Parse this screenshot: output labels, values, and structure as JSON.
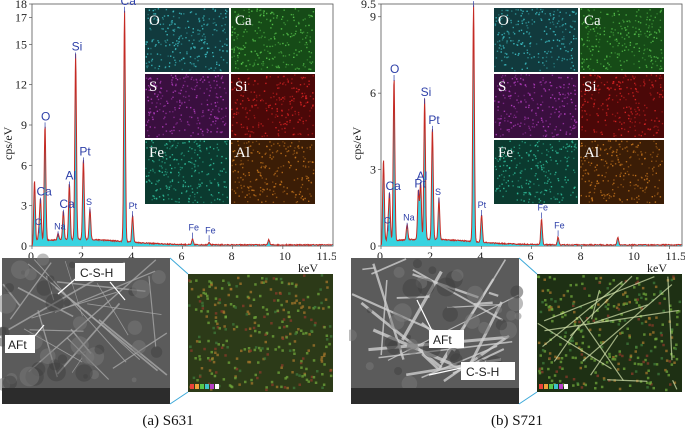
{
  "panels": [
    {
      "id": "a",
      "caption": "(a) S631",
      "chart_data": {
        "type": "area",
        "title": "",
        "xlabel": "keV",
        "ylabel": "cps/eV",
        "xlim": [
          0,
          12
        ],
        "ylim": [
          0,
          18
        ],
        "x_ticks": [
          "0",
          "2",
          "4",
          "6",
          "8",
          "10",
          "11.5"
        ],
        "y_ticks": [
          "0",
          "3",
          "6",
          "9",
          "12",
          "15",
          "17",
          "18"
        ],
        "peaks": [
          {
            "element": "Ca",
            "x": 0.34,
            "y": 3.0
          },
          {
            "element": "C",
            "x": 0.28,
            "y": 0.8
          },
          {
            "element": "O",
            "x": 0.52,
            "y": 8.6
          },
          {
            "element": "Na",
            "x": 1.04,
            "y": 0.5
          },
          {
            "element": "Ca",
            "x": 1.25,
            "y": 2.1
          },
          {
            "element": "Al",
            "x": 1.49,
            "y": 4.2
          },
          {
            "element": "Si",
            "x": 1.74,
            "y": 13.8
          },
          {
            "element": "Pt",
            "x": 2.05,
            "y": 6.0
          },
          {
            "element": "S",
            "x": 2.31,
            "y": 2.3
          },
          {
            "element": "Ca",
            "x": 3.69,
            "y": 17.2
          },
          {
            "element": "Pt",
            "x": 4.01,
            "y": 2.0
          },
          {
            "element": "Fe",
            "x": 6.4,
            "y": 0.4
          },
          {
            "element": "Fe",
            "x": 7.06,
            "y": 0.2
          }
        ],
        "extra_peaks": [
          {
            "x": 0.1,
            "y": 4.5
          },
          {
            "x": 9.44,
            "y": 0.4
          }
        ],
        "grid": false,
        "fill_color": "#38d3e0",
        "line_color": "#c42a24"
      },
      "maps": [
        {
          "label": "O",
          "color": "#3ec3c9",
          "bg": "#113a3d"
        },
        {
          "label": "Ca",
          "color": "#58c64d",
          "bg": "#164b17"
        },
        {
          "label": "S",
          "color": "#b740c4",
          "bg": "#3a0f3f"
        },
        {
          "label": "Si",
          "color": "#dd2424",
          "bg": "#4b0808"
        },
        {
          "label": "Fe",
          "color": "#32c4a0",
          "bg": "#0b3a2f"
        },
        {
          "label": "Al",
          "color": "#c9781e",
          "bg": "#3b1d06"
        }
      ],
      "sem_labels": {
        "phase1": "C-S-H",
        "phase2": "AFt"
      }
    },
    {
      "id": "b",
      "caption": "(b) S721",
      "chart_data": {
        "type": "area",
        "title": "",
        "xlabel": "keV",
        "ylabel": "cps/eV",
        "xlim": [
          0,
          12
        ],
        "ylim": [
          0,
          9.5
        ],
        "x_ticks": [
          "0",
          "2",
          "4",
          "6",
          "8",
          "10",
          "11.5"
        ],
        "y_ticks": [
          "0",
          "3",
          "6",
          "9",
          "9.5"
        ],
        "peaks": [
          {
            "element": "Ca",
            "x": 0.34,
            "y": 1.8
          },
          {
            "element": "C",
            "x": 0.28,
            "y": 0.5
          },
          {
            "element": "O",
            "x": 0.52,
            "y": 6.4
          },
          {
            "element": "Na",
            "x": 1.04,
            "y": 0.6
          },
          {
            "element": "Pt",
            "x": 1.49,
            "y": 1.9
          },
          {
            "element": "Al",
            "x": 1.58,
            "y": 2.2
          },
          {
            "element": "Si",
            "x": 1.74,
            "y": 5.5
          },
          {
            "element": "Pt",
            "x": 2.05,
            "y": 4.4
          },
          {
            "element": "S",
            "x": 2.31,
            "y": 1.6
          },
          {
            "element": "Ca",
            "x": 3.69,
            "y": 9.3
          },
          {
            "element": "Pt",
            "x": 4.01,
            "y": 1.1
          },
          {
            "element": "Fe",
            "x": 6.4,
            "y": 1.0
          },
          {
            "element": "Fe",
            "x": 7.06,
            "y": 0.3
          }
        ],
        "extra_peaks": [
          {
            "x": 0.1,
            "y": 3.2
          },
          {
            "x": 9.44,
            "y": 0.3
          }
        ],
        "grid": false,
        "fill_color": "#38d3e0",
        "line_color": "#c42a24"
      },
      "maps": [
        {
          "label": "O",
          "color": "#3ec3c9",
          "bg": "#113a3d"
        },
        {
          "label": "Ca",
          "color": "#58c64d",
          "bg": "#164b17"
        },
        {
          "label": "S",
          "color": "#b740c4",
          "bg": "#3a0f3f"
        },
        {
          "label": "Si",
          "color": "#dd2424",
          "bg": "#4b0808"
        },
        {
          "label": "Fe",
          "color": "#32c4a0",
          "bg": "#0b3a2f"
        },
        {
          "label": "Al",
          "color": "#c9781e",
          "bg": "#3b1d06"
        }
      ],
      "sem_labels": {
        "phase1": "AFt",
        "phase2": "C-S-H"
      }
    }
  ]
}
